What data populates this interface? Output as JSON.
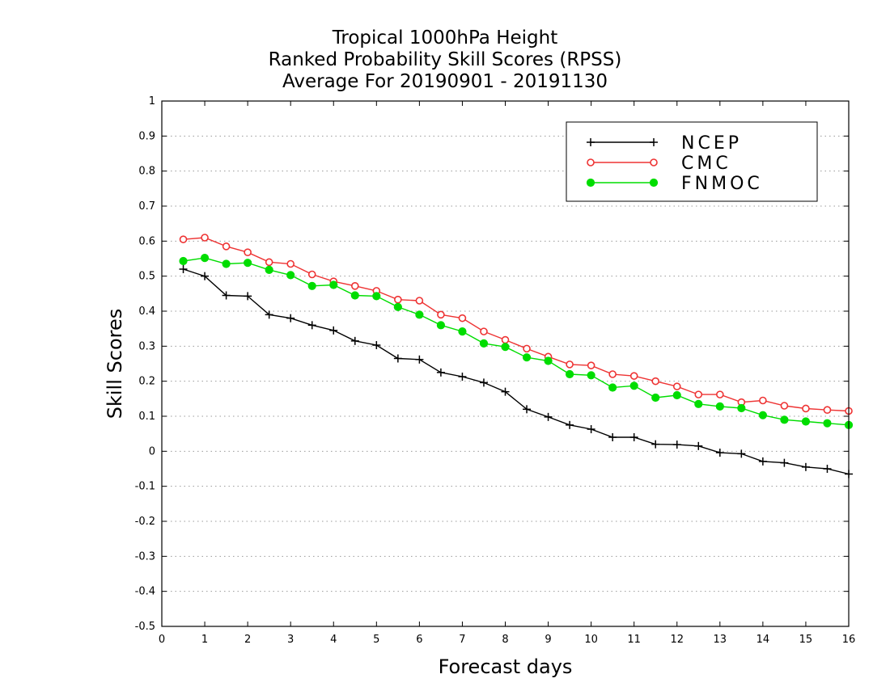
{
  "chart_data": {
    "type": "line",
    "title": [
      "Tropical 1000hPa Height",
      "Ranked Probability Skill Scores (RPSS)",
      "Average For 20190901 - 20191130"
    ],
    "xlabel": "Forecast days",
    "ylabel": "Skill Scores",
    "xlim": [
      0,
      16
    ],
    "ylim": [
      -0.5,
      1
    ],
    "xticks": [
      0,
      1,
      2,
      3,
      4,
      5,
      6,
      7,
      8,
      9,
      10,
      11,
      12,
      13,
      14,
      15,
      16
    ],
    "yticks": [
      -0.5,
      -0.4,
      -0.3,
      -0.2,
      -0.1,
      0,
      0.1,
      0.2,
      0.3,
      0.4,
      0.5,
      0.6,
      0.7,
      0.8,
      0.9,
      1
    ],
    "ytick_labels": [
      "-0.5",
      "-0.4",
      "-0.3",
      "-0.2",
      "-0.1",
      "0",
      "0.1",
      "0.2",
      "0.3",
      "0.4",
      "0.5",
      "0.6",
      "0.7",
      "0.8",
      "0.9",
      "1"
    ],
    "grid": "horizontal dotted",
    "legend_position": "top-right",
    "x": [
      0.5,
      1,
      1.5,
      2,
      2.5,
      3,
      3.5,
      4,
      4.5,
      5,
      5.5,
      6,
      6.5,
      7,
      7.5,
      8,
      8.5,
      9,
      9.5,
      10,
      10.5,
      11,
      11.5,
      12,
      12.5,
      13,
      13.5,
      14,
      14.5,
      15,
      15.5,
      16
    ],
    "series": [
      {
        "name": "NCEP",
        "color": "#000000",
        "marker": "plus",
        "values": [
          0.52,
          0.5,
          0.445,
          0.443,
          0.39,
          0.38,
          0.36,
          0.345,
          0.315,
          0.303,
          0.265,
          0.262,
          0.225,
          0.213,
          0.196,
          0.17,
          0.12,
          0.098,
          0.075,
          0.063,
          0.04,
          0.04,
          0.02,
          0.019,
          0.015,
          -0.004,
          -0.007,
          -0.029,
          -0.033,
          -0.045,
          -0.05,
          -0.065
        ]
      },
      {
        "name": "CMC",
        "color": "#ee3333",
        "marker": "open-circle",
        "values": [
          0.605,
          0.61,
          0.585,
          0.568,
          0.54,
          0.535,
          0.505,
          0.485,
          0.472,
          0.458,
          0.433,
          0.43,
          0.39,
          0.38,
          0.342,
          0.318,
          0.293,
          0.27,
          0.248,
          0.245,
          0.22,
          0.215,
          0.2,
          0.185,
          0.162,
          0.162,
          0.14,
          0.145,
          0.13,
          0.122,
          0.118,
          0.115
        ]
      },
      {
        "name": "FNMOC",
        "color": "#00dd00",
        "marker": "filled-circle",
        "values": [
          0.543,
          0.552,
          0.535,
          0.538,
          0.518,
          0.503,
          0.472,
          0.475,
          0.445,
          0.443,
          0.412,
          0.39,
          0.36,
          0.342,
          0.308,
          0.298,
          0.268,
          0.258,
          0.22,
          0.217,
          0.182,
          0.187,
          0.153,
          0.16,
          0.135,
          0.128,
          0.123,
          0.103,
          0.09,
          0.085,
          0.08,
          0.075
        ]
      }
    ]
  }
}
